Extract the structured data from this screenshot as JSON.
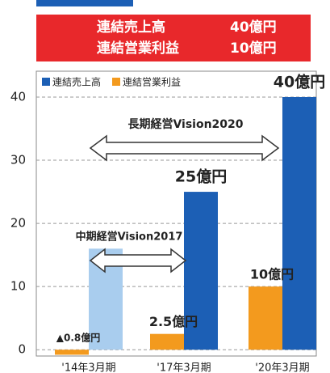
{
  "chart_data": {
    "type": "bar",
    "header": [
      {
        "label": "連結売上高",
        "value": "40億円"
      },
      {
        "label": "連結営業利益",
        "value": "10億円"
      }
    ],
    "categories": [
      "'14年3月期",
      "'17年3月期",
      "'20年3月期"
    ],
    "series": [
      {
        "name": "連結営業利益",
        "color": "#f39a1e",
        "values": [
          -0.8,
          2.5,
          10
        ],
        "value_labels": [
          "▲0.8億円",
          "2.5億円",
          "10億円"
        ]
      },
      {
        "name": "連結売上高",
        "color": "#1c5fb5",
        "colors": [
          "#a9cdee",
          "#1c5fb5",
          "#1c5fb5"
        ],
        "values": [
          16,
          25,
          40
        ],
        "value_labels": [
          null,
          "25億円",
          "40億円"
        ]
      }
    ],
    "annotations": [
      "長期経営Vision2020",
      "中期経営Vision2017"
    ],
    "ylim": [
      -1,
      40
    ],
    "yticks": [
      0,
      10,
      20,
      30,
      40
    ],
    "grid": true,
    "legend": "top-left"
  }
}
